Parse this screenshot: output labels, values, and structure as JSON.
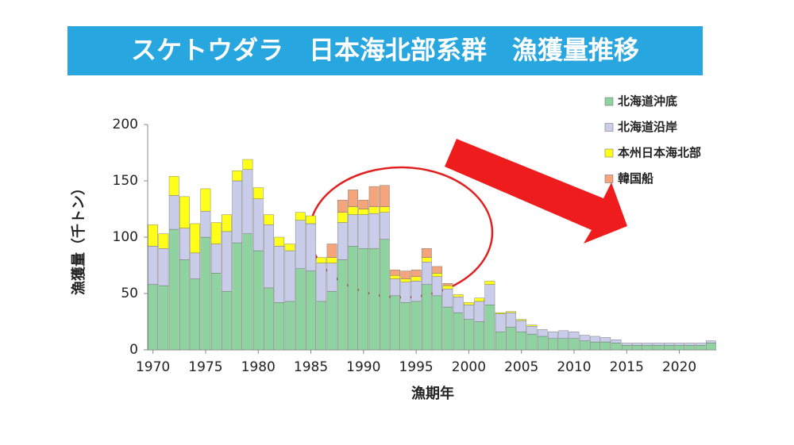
{
  "chart_data": {
    "type": "stacked_bar",
    "title": "スケトウダラ　日本海北部系群　漁獲量推移",
    "x_label": "漁期年",
    "y_label": "漁獲量（千トン）",
    "x": [
      1970,
      1971,
      1972,
      1973,
      1974,
      1975,
      1976,
      1977,
      1978,
      1979,
      1980,
      1981,
      1982,
      1983,
      1984,
      1985,
      1986,
      1987,
      1988,
      1989,
      1990,
      1991,
      1992,
      1993,
      1994,
      1995,
      1996,
      1997,
      1998,
      1999,
      2000,
      2001,
      2002,
      2003,
      2004,
      2005,
      2006,
      2007,
      2008,
      2009,
      2010,
      2011,
      2012,
      2013,
      2014,
      2015,
      2016,
      2017,
      2018,
      2019,
      2020,
      2021,
      2022,
      2023
    ],
    "xlim": [
      1969.5,
      2023.5
    ],
    "xticks": [
      1970,
      1975,
      1980,
      1985,
      1990,
      1995,
      2000,
      2005,
      2010,
      2015,
      2020
    ],
    "ylim": [
      0,
      200
    ],
    "yticks": [
      0,
      50,
      100,
      150,
      200
    ],
    "legend_position": "upper right",
    "series": [
      {
        "name": "北海道沖底",
        "color": "#8fd3a0",
        "values": [
          58,
          57,
          107,
          80,
          63,
          100,
          68,
          52,
          95,
          103,
          88,
          55,
          42,
          43,
          72,
          70,
          43,
          52,
          80,
          92,
          90,
          90,
          98,
          48,
          42,
          43,
          58,
          48,
          38,
          33,
          27,
          25,
          40,
          16,
          20,
          16,
          14,
          12,
          10,
          10,
          10,
          8,
          7,
          7,
          6,
          4,
          4,
          4,
          4,
          4,
          4,
          4,
          4,
          6
        ]
      },
      {
        "name": "北海道沿岸",
        "color": "#c9cdea",
        "values": [
          34,
          33,
          30,
          28,
          23,
          23,
          26,
          53,
          55,
          57,
          46,
          56,
          50,
          45,
          43,
          42,
          34,
          25,
          33,
          28,
          30,
          31,
          24,
          15,
          18,
          18,
          20,
          17,
          16,
          14,
          13,
          18,
          18,
          16,
          13,
          10,
          7,
          6,
          6,
          7,
          6,
          5,
          5,
          4,
          3,
          2,
          2,
          2,
          2,
          2,
          2,
          2,
          2,
          2
        ]
      },
      {
        "name": "本州日本海北部",
        "color": "#ffff1a",
        "values": [
          19,
          13,
          17,
          28,
          26,
          20,
          19,
          15,
          9,
          9,
          10,
          9,
          8,
          6,
          7,
          7,
          5,
          5,
          9,
          7,
          5,
          6,
          5,
          3,
          3,
          4,
          4,
          3,
          3,
          2,
          2,
          3,
          3,
          1,
          1,
          1,
          1,
          0,
          0,
          0,
          0,
          0,
          0,
          0,
          0,
          0,
          0,
          0,
          0,
          0,
          0,
          0,
          0,
          0
        ]
      },
      {
        "name": "韓国船",
        "color": "#f4a57c",
        "values": [
          0,
          0,
          0,
          0,
          0,
          0,
          0,
          0,
          0,
          0,
          0,
          0,
          0,
          0,
          0,
          0,
          0,
          12,
          11,
          15,
          8,
          18,
          19,
          5,
          7,
          6,
          8,
          6,
          2,
          0,
          0,
          0,
          0,
          0,
          0,
          0,
          0,
          0,
          0,
          0,
          0,
          0,
          0,
          0,
          0,
          0,
          0,
          0,
          0,
          0,
          0,
          0,
          0,
          0
        ]
      }
    ]
  }
}
